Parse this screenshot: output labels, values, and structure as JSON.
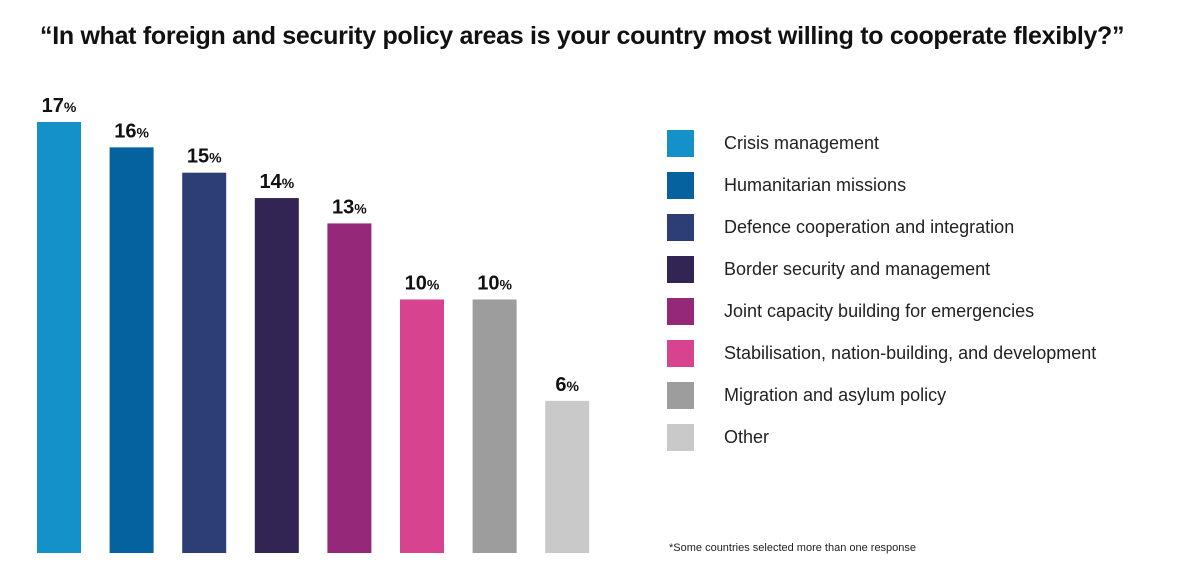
{
  "chart_data": {
    "type": "bar",
    "title": "“In what foreign and security policy areas is your country most willing to cooperate flexibly?”",
    "categories": [
      "Crisis management",
      "Humanitarian missions",
      "Defence cooperation and integration",
      "Border security and management",
      "Joint capacity building for emergencies",
      "Stabilisation, nation-building, and development",
      "Migration and asylum policy",
      "Other"
    ],
    "values": [
      17,
      16,
      15,
      14,
      13,
      10,
      10,
      6
    ],
    "value_suffix": "%",
    "colors": [
      "#1591c9",
      "#05629f",
      "#2d3e76",
      "#332553",
      "#962879",
      "#d7438e",
      "#9d9d9d",
      "#c9c9c9"
    ],
    "ylim": [
      0,
      17
    ],
    "grid": false,
    "legend_position": "right",
    "footnote": "*Some countries selected more than one response"
  }
}
